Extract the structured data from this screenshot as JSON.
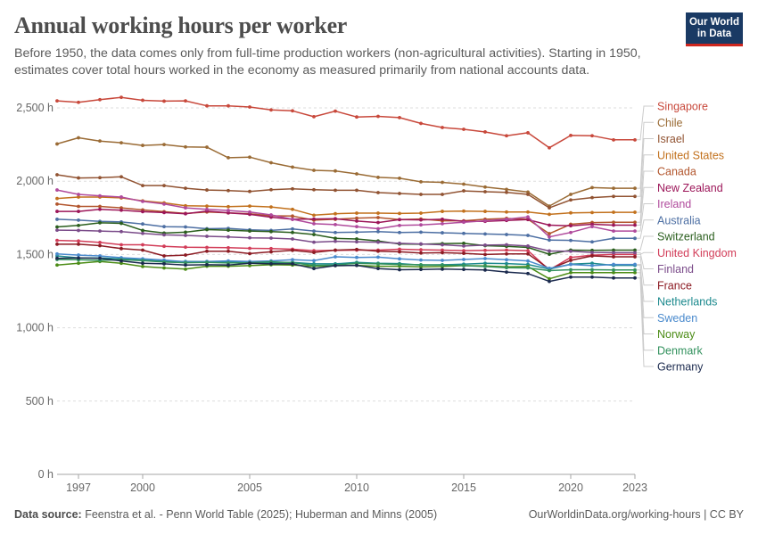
{
  "header": {
    "title": "Annual working hours per worker",
    "subtitle": "Before 1950, the data comes only from full-time production workers (non-agricultural activities). Starting in 1950, estimates cover total hours worked in the economy as measured primarily from national accounts data.",
    "logo_line1": "Our World",
    "logo_line2": "in Data"
  },
  "footer": {
    "source_label": "Data source:",
    "source_text": "Feenstra et al. - Penn World Table (2025); Huberman and Minns (2005)",
    "url": "OurWorldinData.org/working-hours | CC BY"
  },
  "chart_data": {
    "type": "line",
    "title": "Annual working hours per worker",
    "xlabel": "",
    "ylabel": "",
    "xlim": [
      1996,
      2023
    ],
    "ylim": [
      0,
      2500
    ],
    "grid": true,
    "legend": "right",
    "x_ticks": [
      {
        "value": 1997,
        "label": "1997"
      },
      {
        "value": 2000,
        "label": "2000"
      },
      {
        "value": 2005,
        "label": "2005"
      },
      {
        "value": 2010,
        "label": "2010"
      },
      {
        "value": 2015,
        "label": "2015"
      },
      {
        "value": 2020,
        "label": "2020"
      },
      {
        "value": 2023,
        "label": "2023"
      }
    ],
    "y_ticks": [
      {
        "value": 0,
        "label": "0 h"
      },
      {
        "value": 500,
        "label": "500 h"
      },
      {
        "value": 1000,
        "label": "1,000 h"
      },
      {
        "value": 1500,
        "label": "1,500 h"
      },
      {
        "value": 2000,
        "label": "2,000 h"
      },
      {
        "value": 2500,
        "label": "2,500 h"
      }
    ],
    "x": [
      1996,
      1997,
      1998,
      1999,
      2000,
      2001,
      2002,
      2003,
      2004,
      2005,
      2006,
      2007,
      2008,
      2009,
      2010,
      2011,
      2012,
      2013,
      2014,
      2015,
      2016,
      2017,
      2018,
      2019,
      2020,
      2021,
      2022,
      2023
    ],
    "series": [
      {
        "name": "Singapore",
        "color": "#c8483b",
        "values": [
          2548,
          2538,
          2556,
          2572,
          2552,
          2546,
          2548,
          2514,
          2514,
          2506,
          2486,
          2480,
          2440,
          2478,
          2438,
          2442,
          2434,
          2394,
          2366,
          2354,
          2336,
          2310,
          2330,
          2228,
          2312,
          2310,
          2282,
          2282
        ]
      },
      {
        "name": "Chile",
        "color": "#9a6b35",
        "values": [
          2254,
          2296,
          2274,
          2262,
          2244,
          2250,
          2234,
          2232,
          2160,
          2164,
          2126,
          2096,
          2074,
          2070,
          2050,
          2026,
          2020,
          1996,
          1992,
          1980,
          1960,
          1944,
          1926,
          1830,
          1910,
          1956,
          1952,
          1952
        ]
      },
      {
        "name": "Israel",
        "color": "#915332",
        "values": [
          2044,
          2022,
          2024,
          2030,
          1970,
          1970,
          1952,
          1940,
          1936,
          1930,
          1942,
          1948,
          1942,
          1938,
          1938,
          1922,
          1916,
          1910,
          1910,
          1934,
          1928,
          1924,
          1910,
          1818,
          1872,
          1888,
          1896,
          1896
        ]
      },
      {
        "name": "United States",
        "color": "#c2711d",
        "values": [
          1882,
          1892,
          1892,
          1886,
          1866,
          1852,
          1832,
          1830,
          1826,
          1830,
          1824,
          1808,
          1768,
          1778,
          1782,
          1782,
          1780,
          1782,
          1794,
          1796,
          1794,
          1790,
          1790,
          1774,
          1784,
          1786,
          1788,
          1788
        ]
      },
      {
        "name": "Canada",
        "color": "#b2552c",
        "values": [
          1844,
          1828,
          1828,
          1818,
          1804,
          1792,
          1780,
          1790,
          1784,
          1778,
          1764,
          1762,
          1734,
          1740,
          1748,
          1752,
          1738,
          1742,
          1730,
          1730,
          1740,
          1746,
          1740,
          1642,
          1706,
          1718,
          1720,
          1720
        ]
      },
      {
        "name": "New Zealand",
        "color": "#9c1659",
        "values": [
          1794,
          1794,
          1808,
          1802,
          1792,
          1786,
          1778,
          1796,
          1784,
          1774,
          1754,
          1740,
          1742,
          1744,
          1728,
          1718,
          1738,
          1736,
          1740,
          1726,
          1726,
          1732,
          1738,
          1700,
          1696,
          1706,
          1700,
          1700
        ]
      },
      {
        "name": "Ireland",
        "color": "#b04a9c",
        "values": [
          1940,
          1910,
          1900,
          1892,
          1862,
          1844,
          1818,
          1808,
          1800,
          1790,
          1770,
          1740,
          1710,
          1704,
          1690,
          1676,
          1698,
          1702,
          1710,
          1720,
          1730,
          1740,
          1756,
          1620,
          1650,
          1690,
          1660,
          1660
        ]
      },
      {
        "name": "Australia",
        "color": "#4d6fa3",
        "values": [
          1740,
          1734,
          1726,
          1722,
          1708,
          1690,
          1688,
          1676,
          1678,
          1668,
          1664,
          1674,
          1660,
          1650,
          1652,
          1656,
          1650,
          1652,
          1648,
          1644,
          1640,
          1636,
          1630,
          1598,
          1596,
          1586,
          1610,
          1610
        ]
      },
      {
        "name": "Switzerland",
        "color": "#2a5e1d",
        "values": [
          1688,
          1698,
          1716,
          1712,
          1664,
          1646,
          1652,
          1670,
          1666,
          1660,
          1656,
          1650,
          1636,
          1610,
          1606,
          1592,
          1572,
          1570,
          1574,
          1576,
          1560,
          1556,
          1548,
          1502,
          1530,
          1528,
          1530,
          1530
        ]
      },
      {
        "name": "United Kingdom",
        "color": "#d23c58",
        "values": [
          1596,
          1592,
          1582,
          1566,
          1566,
          1556,
          1550,
          1548,
          1546,
          1542,
          1540,
          1536,
          1526,
          1528,
          1530,
          1530,
          1536,
          1532,
          1530,
          1526,
          1528,
          1530,
          1526,
          1394,
          1480,
          1496,
          1500,
          1500
        ]
      },
      {
        "name": "Finland",
        "color": "#7b4c8a",
        "values": [
          1666,
          1664,
          1660,
          1656,
          1644,
          1634,
          1630,
          1624,
          1620,
          1614,
          1612,
          1606,
          1584,
          1590,
          1586,
          1584,
          1576,
          1572,
          1566,
          1558,
          1564,
          1566,
          1558,
          1524,
          1522,
          1514,
          1512,
          1512
        ]
      },
      {
        "name": "France",
        "color": "#8c1b23",
        "values": [
          1570,
          1570,
          1560,
          1540,
          1530,
          1490,
          1496,
          1522,
          1522,
          1506,
          1518,
          1528,
          1514,
          1530,
          1534,
          1522,
          1518,
          1510,
          1512,
          1508,
          1500,
          1504,
          1504,
          1400,
          1460,
          1490,
          1484,
          1484
        ]
      },
      {
        "name": "Netherlands",
        "color": "#1d8a8e",
        "values": [
          1490,
          1476,
          1476,
          1470,
          1462,
          1454,
          1452,
          1452,
          1450,
          1446,
          1442,
          1446,
          1436,
          1436,
          1446,
          1440,
          1438,
          1428,
          1430,
          1434,
          1440,
          1438,
          1432,
          1400,
          1434,
          1440,
          1426,
          1426
        ]
      },
      {
        "name": "Sweden",
        "color": "#4a8acd",
        "values": [
          1504,
          1496,
          1490,
          1478,
          1470,
          1462,
          1450,
          1452,
          1456,
          1452,
          1456,
          1464,
          1458,
          1484,
          1480,
          1482,
          1470,
          1462,
          1460,
          1466,
          1472,
          1464,
          1456,
          1406,
          1432,
          1424,
          1432,
          1432
        ]
      },
      {
        "name": "Norway",
        "color": "#4c8c16",
        "values": [
          1428,
          1440,
          1452,
          1440,
          1418,
          1408,
          1400,
          1420,
          1420,
          1424,
          1430,
          1428,
          1420,
          1424,
          1426,
          1420,
          1420,
          1416,
          1418,
          1424,
          1422,
          1416,
          1418,
          1334,
          1376,
          1376,
          1376,
          1376
        ]
      },
      {
        "name": "Denmark",
        "color": "#32915d",
        "values": [
          1466,
          1464,
          1460,
          1464,
          1458,
          1448,
          1444,
          1446,
          1442,
          1444,
          1450,
          1444,
          1426,
          1428,
          1440,
          1436,
          1432,
          1430,
          1428,
          1424,
          1418,
          1410,
          1408,
          1390,
          1396,
          1396,
          1394,
          1394
        ]
      },
      {
        "name": "Germany",
        "color": "#1b2a4e",
        "values": [
          1474,
          1476,
          1474,
          1456,
          1440,
          1436,
          1428,
          1430,
          1428,
          1440,
          1436,
          1436,
          1404,
          1424,
          1426,
          1404,
          1396,
          1398,
          1400,
          1398,
          1394,
          1380,
          1370,
          1316,
          1346,
          1346,
          1340,
          1340
        ]
      }
    ]
  }
}
